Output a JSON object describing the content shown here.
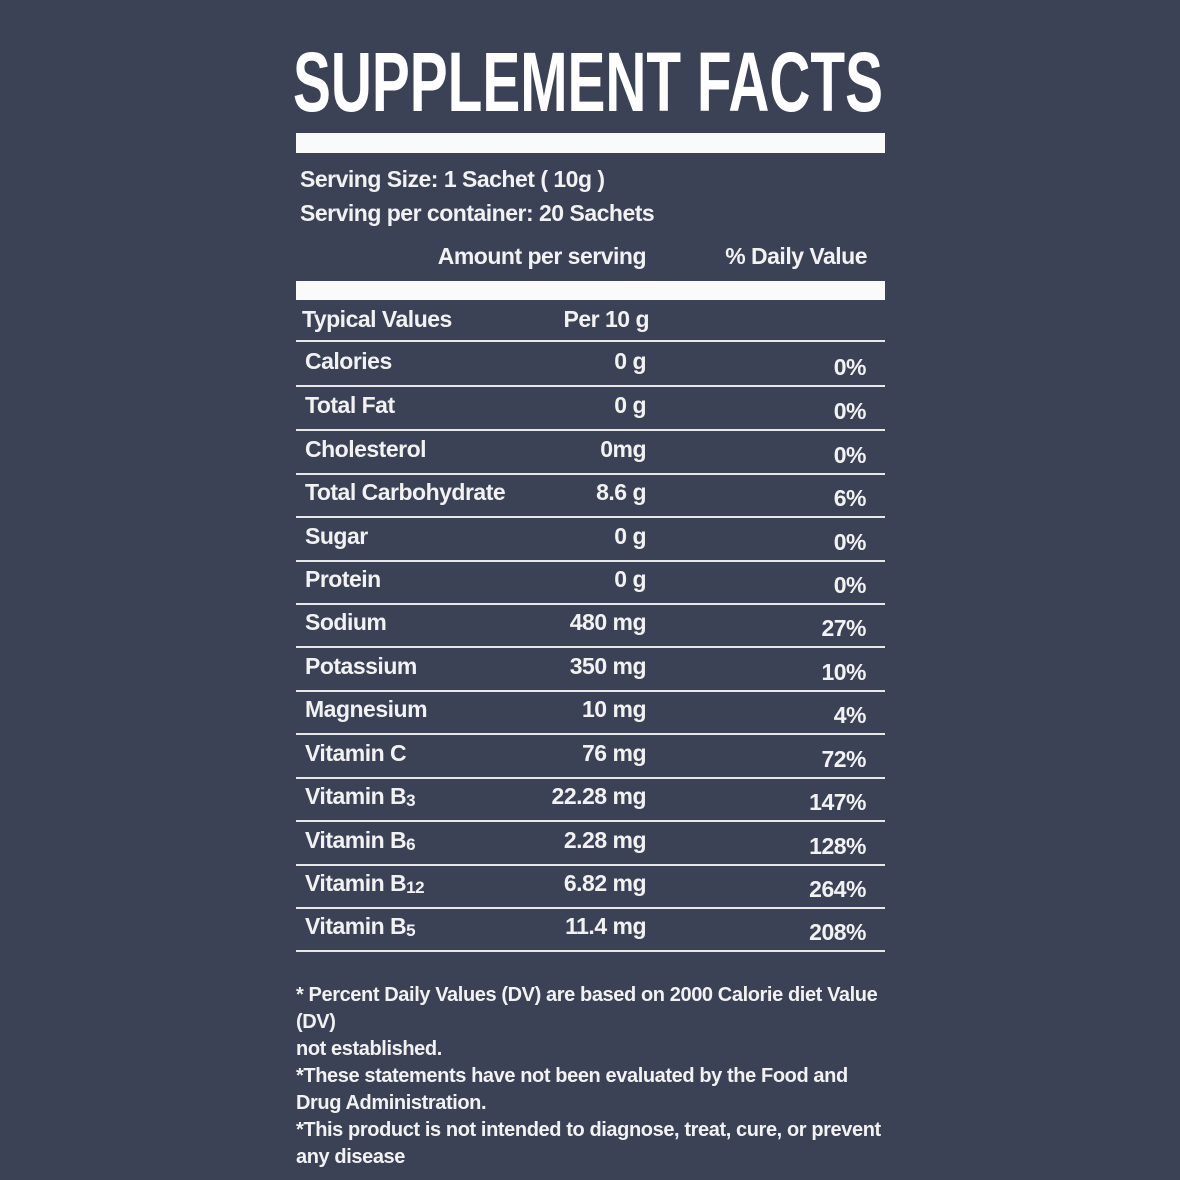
{
  "title": "SUPPLEMENT FACTS",
  "serving_size": "Serving Size: 1 Sachet ( 10g )",
  "servings_per_container": "Serving per container: 20 Sachets",
  "column_headers": {
    "amount": "Amount per serving",
    "daily_value": "% Daily Value"
  },
  "table": {
    "header": {
      "name": "Typical Values",
      "amount": "Per 10 g"
    },
    "rows": [
      {
        "name": "Calories",
        "amount": "0 g",
        "dv": "0%"
      },
      {
        "name": "Total Fat",
        "amount": "0 g",
        "dv": "0%"
      },
      {
        "name": "Cholesterol",
        "amount": "0mg",
        "dv": "0%"
      },
      {
        "name": "Total Carbohydrate",
        "amount": "8.6 g",
        "dv": "6%"
      },
      {
        "name": "Sugar",
        "amount": "0 g",
        "dv": "0%"
      },
      {
        "name": "Protein",
        "amount": "0 g",
        "dv": "0%"
      },
      {
        "name": "Sodium",
        "amount": "480 mg",
        "dv": "27%"
      },
      {
        "name": "Potassium",
        "amount": "350 mg",
        "dv": "10%"
      },
      {
        "name": "Magnesium",
        "amount": "10 mg",
        "dv": "4%"
      },
      {
        "name": "Vitamin C",
        "amount": "76 mg",
        "dv": "72%"
      },
      {
        "name": "Vitamin B",
        "sub": "3",
        "amount": "22.28 mg",
        "dv": "147%"
      },
      {
        "name": "Vitamin B",
        "sub": "6",
        "amount": "2.28 mg",
        "dv": "128%"
      },
      {
        "name": "Vitamin B",
        "sub": "12",
        "amount": "6.82 mg",
        "dv": "264%"
      },
      {
        "name": "Vitamin B",
        "sub": "5",
        "amount": "11.4 mg",
        "dv": "208%"
      }
    ]
  },
  "notes": [
    "* Percent Daily Values (DV) are based on 2000 Calorie diet Value (DV)",
    "not established.",
    "*These statements have not been evaluated by the Food and Drug Administration.",
    "*This product is not intended to diagnose, treat, cure, or prevent any disease"
  ]
}
